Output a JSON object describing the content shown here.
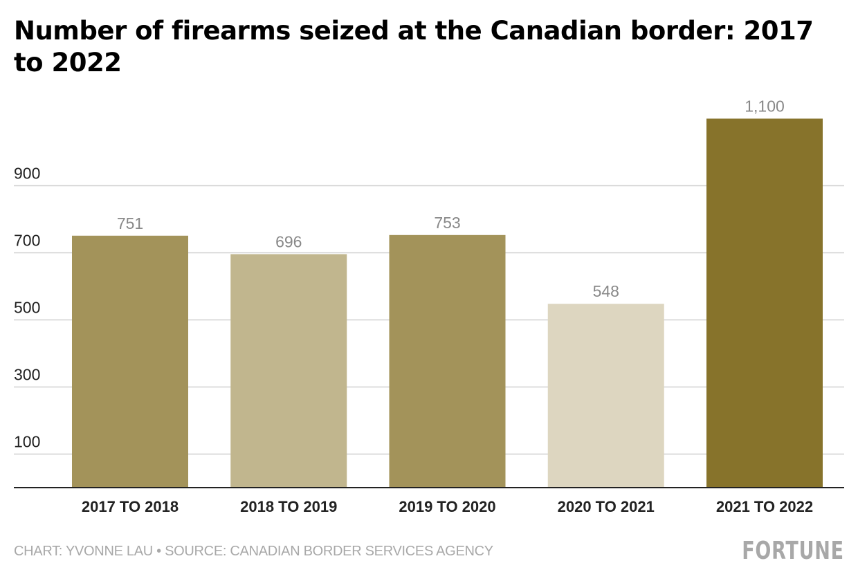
{
  "chart_data": {
    "type": "bar",
    "title": "Number of firearms seized at the Canadian border: 2017 to 2022",
    "categories": [
      "2017 TO 2018",
      "2018 TO 2019",
      "2019 TO 2020",
      "2020 TO 2021",
      "2021 TO 2022"
    ],
    "values": [
      751,
      696,
      753,
      548,
      1100
    ],
    "data_labels": [
      "751",
      "696",
      "753",
      "548",
      "1,100"
    ],
    "colors": [
      "#a3935a",
      "#c1b68e",
      "#a3935a",
      "#ddd6c0",
      "#87732b"
    ],
    "yticks": [
      100,
      300,
      500,
      700,
      900
    ],
    "ylim": [
      0,
      1100
    ],
    "xlabel": "",
    "ylabel": "",
    "grid": true
  },
  "footer": {
    "credit": "CHART: YVONNE LAU • SOURCE: CANADIAN BORDER SERVICES AGENCY",
    "logo": "FORTUNE"
  }
}
